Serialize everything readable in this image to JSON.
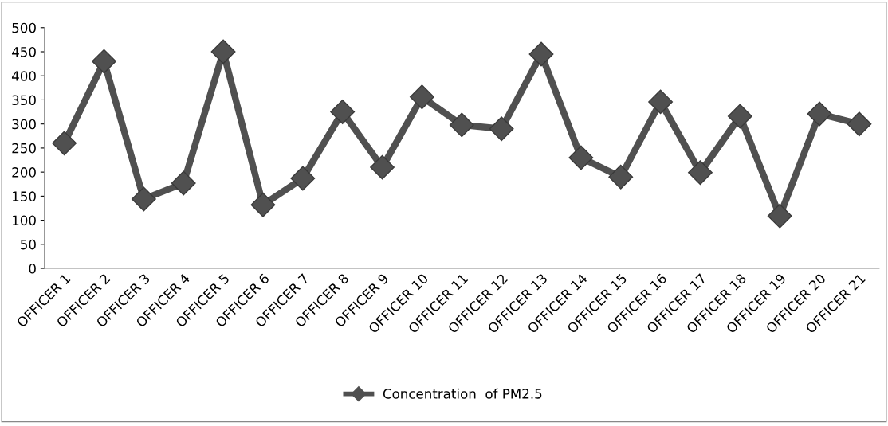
{
  "chart_data": {
    "type": "line",
    "categories": [
      "OFFICER 1",
      "OFFICER 2",
      "OFFICER 3",
      "OFFICER 4",
      "OFFICER 5",
      "OFFICER 6",
      "OFFICER 7",
      "OFFICER 8",
      "OFFICER 9",
      "OFFICER 10",
      "OFFICER 11",
      "OFFICER 12",
      "OFFICER 13",
      "OFFICER 14",
      "OFFICER 15",
      "OFFICER 16",
      "OFFICER 17",
      "OFFICER 18",
      "OFFICER 19",
      "OFFICER 20",
      "OFFICER 21"
    ],
    "series": [
      {
        "name": "Concentration  of PM2.5",
        "color": "#505050",
        "values": [
          260,
          430,
          144,
          177,
          450,
          132,
          187,
          325,
          210,
          356,
          298,
          290,
          445,
          230,
          190,
          346,
          199,
          316,
          109,
          321,
          300
        ]
      }
    ],
    "ylim": [
      0,
      500
    ],
    "yticks": [
      0,
      50,
      100,
      150,
      200,
      250,
      300,
      350,
      400,
      450,
      500
    ],
    "marker": "diamond",
    "line_style": "solid",
    "legend": "bottom",
    "grid": false
  }
}
